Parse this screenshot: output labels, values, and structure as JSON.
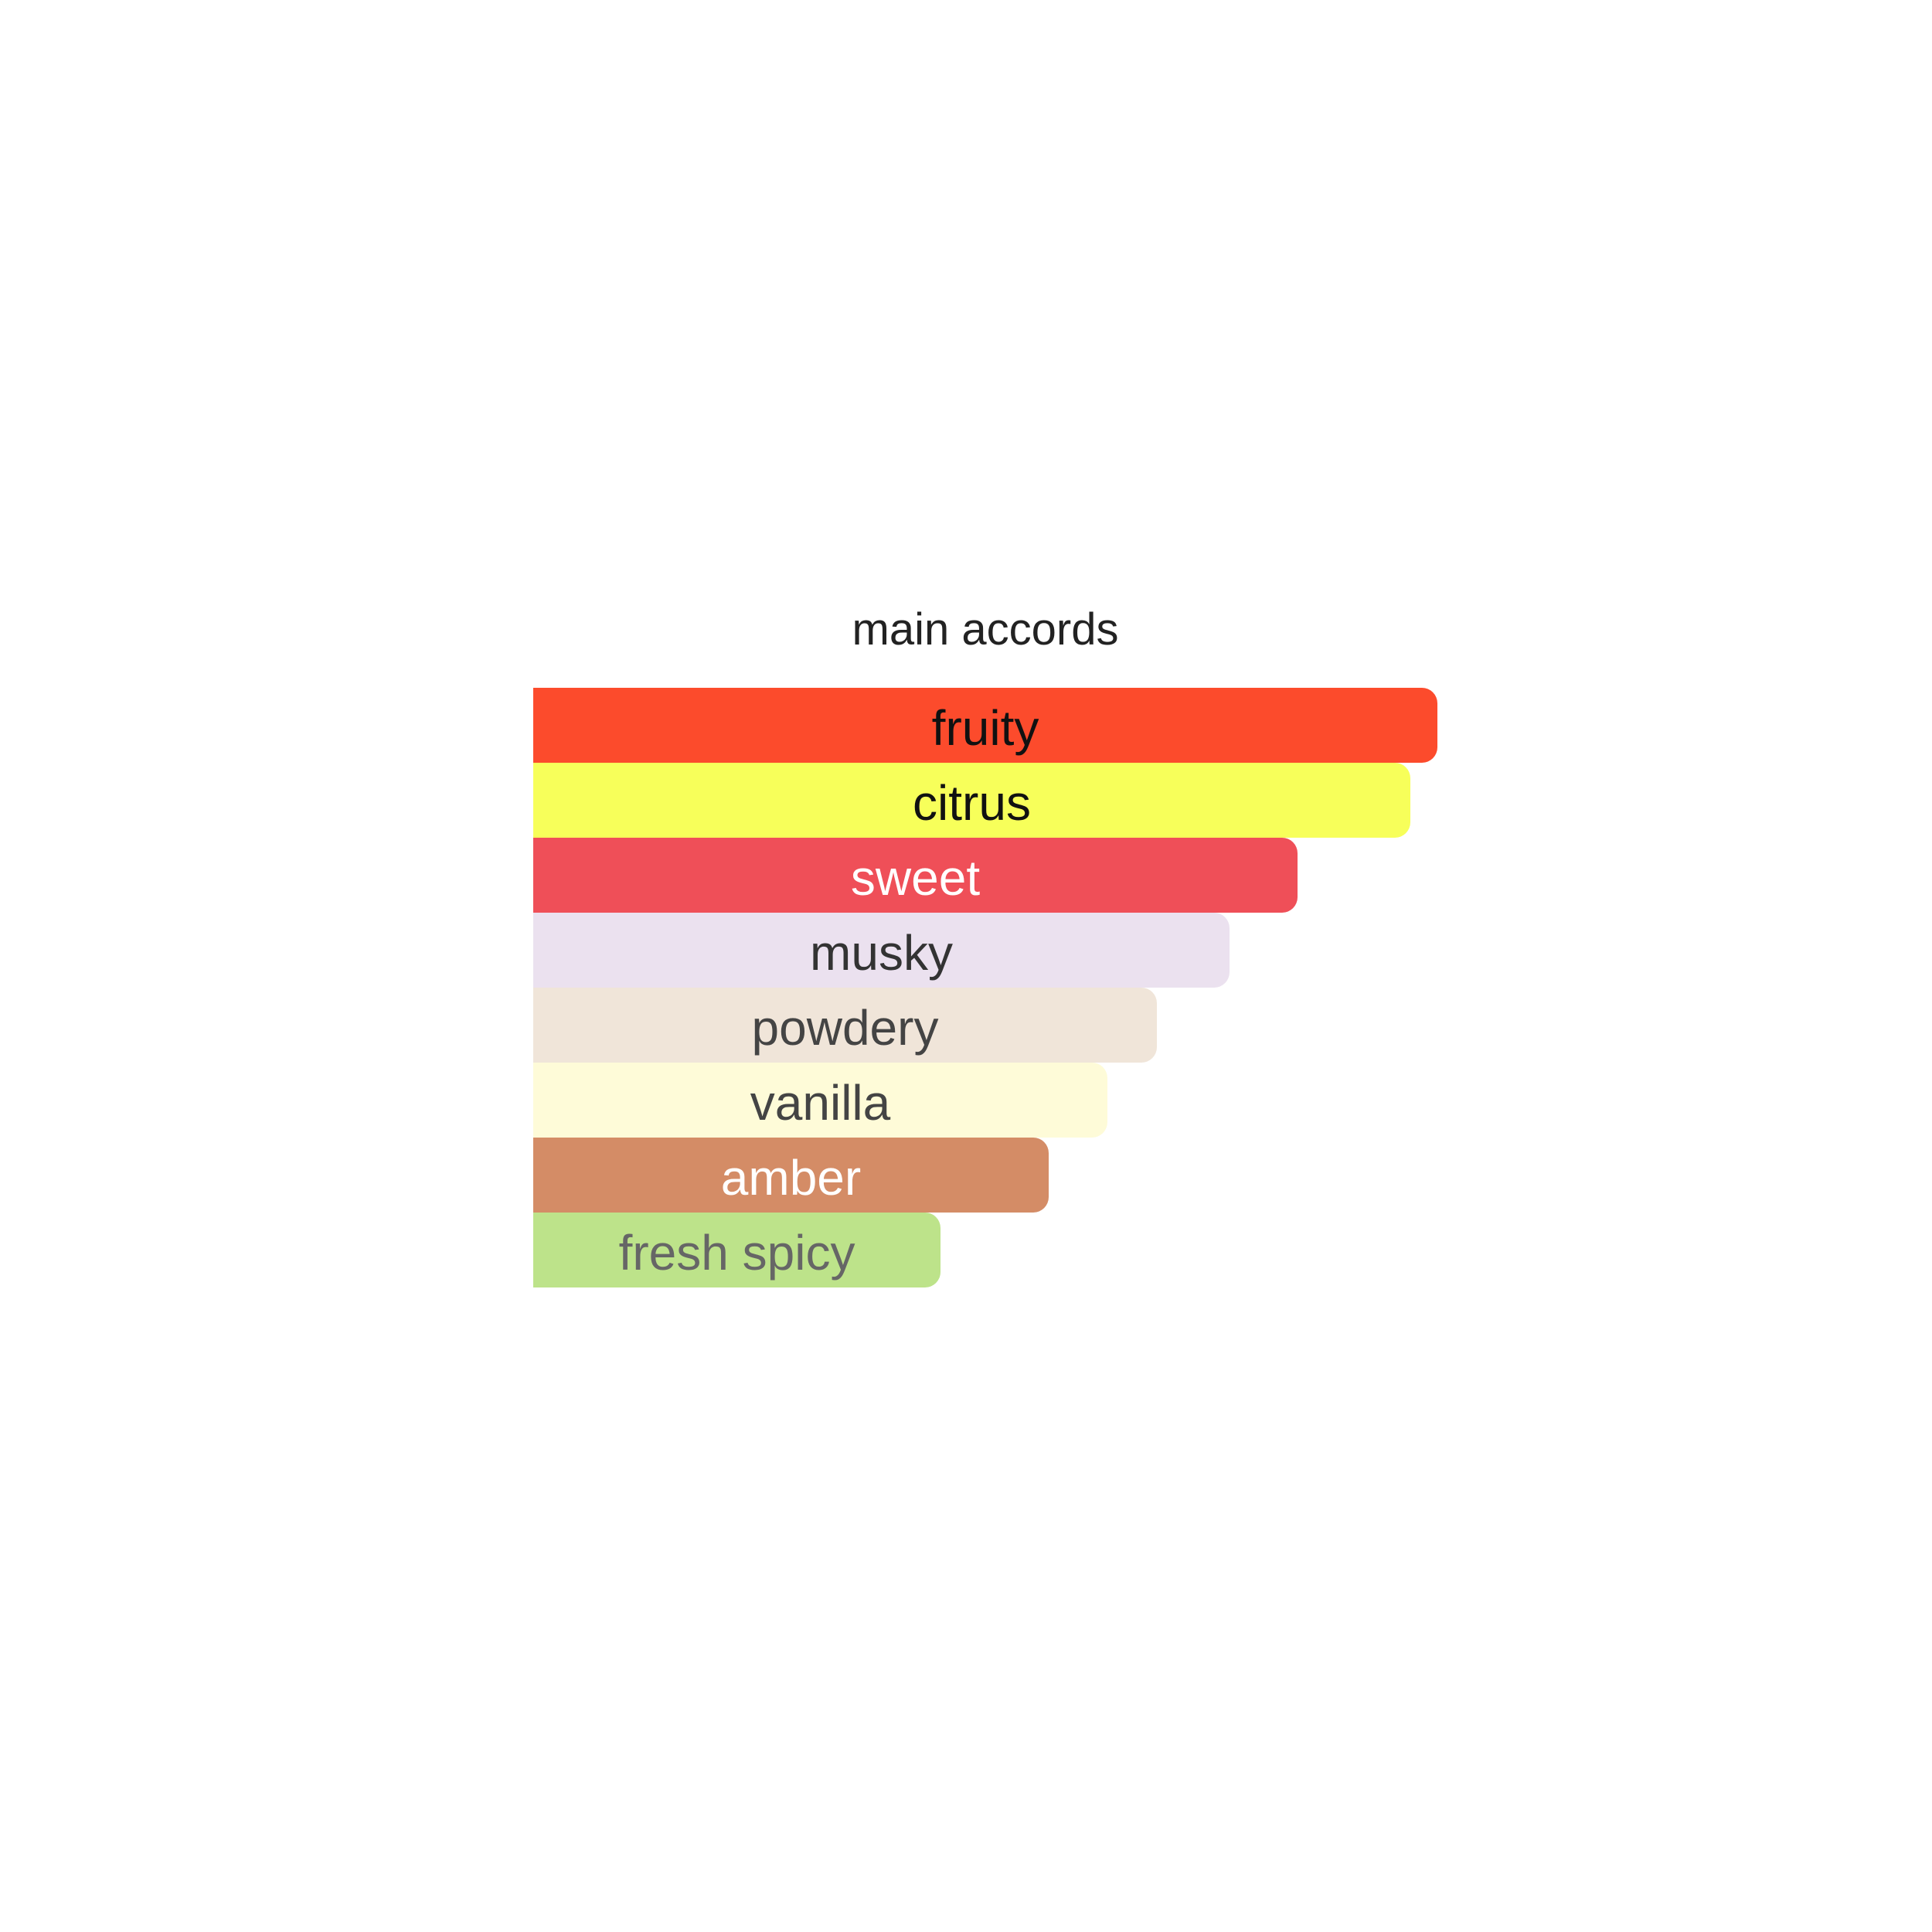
{
  "chart_data": {
    "type": "bar",
    "orientation": "horizontal",
    "title": "main accords",
    "xlabel": "",
    "ylabel": "",
    "grid": false,
    "xlim": [
      0,
      100
    ],
    "categories": [
      "fruity",
      "citrus",
      "sweet",
      "musky",
      "powdery",
      "vanilla",
      "amber",
      "fresh spicy"
    ],
    "values": [
      100,
      97,
      84.5,
      77,
      69,
      63.5,
      57,
      45
    ],
    "colors": [
      "#fc4b2c",
      "#f7ff5a",
      "#ef4f58",
      "#ebe1ef",
      "#f0e5d9",
      "#fefbd8",
      "#d48c66",
      "#bde38a"
    ],
    "label_colors": [
      "#111111",
      "#111111",
      "#ffffff",
      "#333333",
      "#444444",
      "#444444",
      "#ffffff",
      "#666666"
    ]
  }
}
